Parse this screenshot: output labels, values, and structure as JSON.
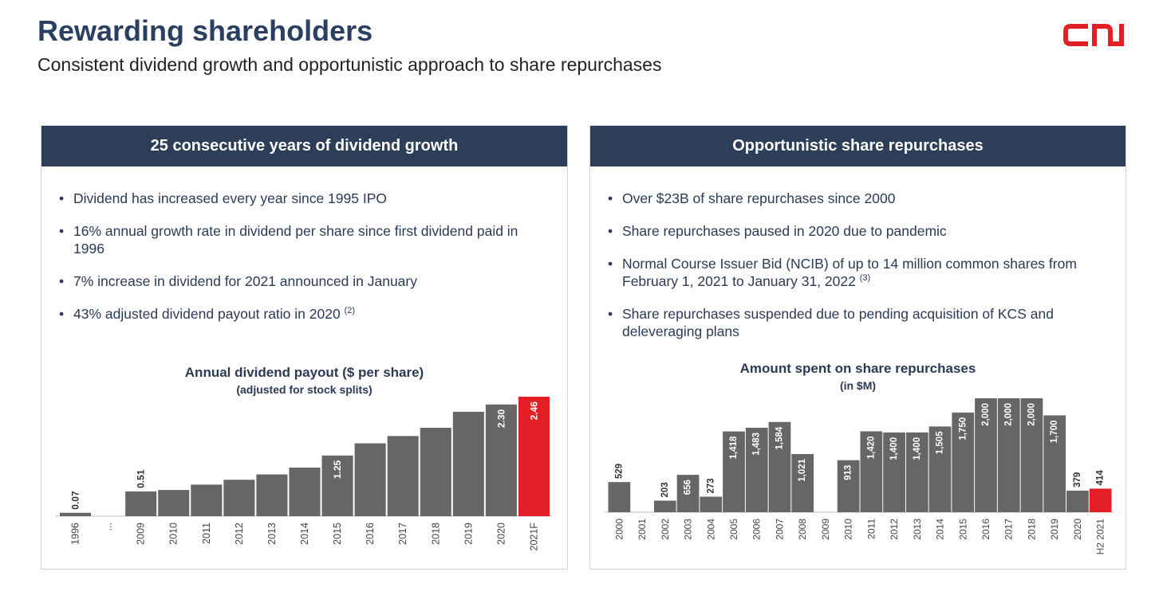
{
  "page": {
    "title": "Rewarding shareholders",
    "subtitle": "Consistent dividend growth and opportunistic approach to share repurchases",
    "logo_text": "CN",
    "brand_color": "#e31e24",
    "header_color": "#2c3e58"
  },
  "left_panel": {
    "header": "25 consecutive years of dividend growth",
    "bullets": [
      {
        "text": "Dividend has increased every year since 1995 IPO",
        "note": ""
      },
      {
        "text": "16% annual growth rate in dividend per share since first dividend paid in 1996",
        "note": ""
      },
      {
        "text": "7% increase in dividend for 2021 announced in January",
        "note": ""
      },
      {
        "text": "43% adjusted dividend payout ratio in 2020",
        "note": "(2)"
      }
    ]
  },
  "right_panel": {
    "header": "Opportunistic share repurchases",
    "bullets": [
      {
        "text": "Over $23B of share repurchases since 2000",
        "note": ""
      },
      {
        "text": "Share repurchases paused in 2020 due to pandemic",
        "note": ""
      },
      {
        "text": "Normal Course Issuer Bid (NCIB) of up to 14 million common shares from February 1, 2021 to January 31, 2022",
        "note": "(3)"
      },
      {
        "text": "Share repurchases suspended due to pending acquisition of KCS and deleveraging plans",
        "note": ""
      }
    ]
  },
  "chart_data": [
    {
      "type": "bar",
      "title": "Annual dividend payout ($ per share)",
      "subtitle": "(adjusted for stock splits)",
      "categories": [
        "1996",
        "...",
        "2009",
        "2010",
        "2011",
        "2012",
        "2013",
        "2014",
        "2015",
        "2016",
        "2017",
        "2018",
        "2019",
        "2020",
        "2021F"
      ],
      "values": [
        0.07,
        null,
        0.51,
        0.54,
        0.65,
        0.75,
        0.86,
        1.0,
        1.25,
        1.5,
        1.65,
        1.82,
        2.15,
        2.3,
        2.46
      ],
      "data_labels": [
        "0.07",
        "",
        "0.51",
        "",
        "",
        "",
        "",
        "",
        "1.25",
        "",
        "",
        "",
        "",
        "2.30",
        "2.46"
      ],
      "highlight_index": 14,
      "bar_color": "#666666",
      "highlight_color": "#e31e24",
      "ylim": [
        0,
        2.46
      ]
    },
    {
      "type": "bar",
      "title": "Amount spent on share repurchases",
      "subtitle": "(in $M)",
      "categories": [
        "2000",
        "2001",
        "2002",
        "2003",
        "2004",
        "2005",
        "2006",
        "2007",
        "2008",
        "2009",
        "2010",
        "2011",
        "2012",
        "2013",
        "2014",
        "2015",
        "2016",
        "2017",
        "2018",
        "2019",
        "2020",
        "H2 2021"
      ],
      "values": [
        529,
        0,
        203,
        656,
        273,
        1418,
        1483,
        1584,
        1021,
        0,
        913,
        1420,
        1400,
        1400,
        1505,
        1750,
        2000,
        2000,
        2000,
        1700,
        379,
        414
      ],
      "data_labels": [
        "529",
        "",
        "203",
        "656",
        "273",
        "1,418",
        "1,483",
        "1,584",
        "1,021",
        "",
        "913",
        "1,420",
        "1,400",
        "1,400",
        "1,505",
        "1,750",
        "2,000",
        "2,000",
        "2,000",
        "1,700",
        "379",
        "414"
      ],
      "highlight_index": 21,
      "bar_color": "#666666",
      "highlight_color": "#e31e24",
      "ylim": [
        0,
        2000
      ]
    }
  ]
}
